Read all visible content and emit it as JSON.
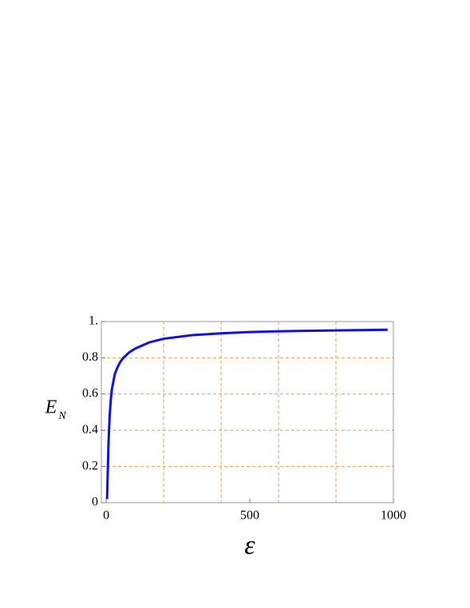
{
  "chart_data": {
    "type": "line",
    "xlabel": "ε",
    "ylabel": "E",
    "ylabel_subscript": "N",
    "x": [
      3,
      5,
      8,
      12,
      16,
      20,
      30,
      40,
      50,
      60,
      80,
      100,
      150,
      200,
      300,
      400,
      500,
      600,
      700,
      800,
      900,
      980
    ],
    "series": [
      {
        "color": "#1010e0",
        "values": [
          0.02,
          0.15,
          0.33,
          0.48,
          0.57,
          0.63,
          0.71,
          0.75,
          0.78,
          0.8,
          0.83,
          0.85,
          0.885,
          0.905,
          0.925,
          0.935,
          0.942,
          0.946,
          0.949,
          0.951,
          0.953,
          0.955
        ]
      }
    ],
    "xlim": [
      -17,
      1000
    ],
    "ylim": [
      0,
      1
    ],
    "xticks": [
      0,
      500,
      1000
    ],
    "yticks": [
      0,
      0.2,
      0.4,
      0.6,
      0.8,
      {
        "value": 1,
        "label": "1."
      }
    ],
    "xgrid": [
      200,
      400,
      600,
      800
    ],
    "ygrid": [
      0.2,
      0.4,
      0.6,
      0.8
    ],
    "grid_color": "#f0a050"
  }
}
